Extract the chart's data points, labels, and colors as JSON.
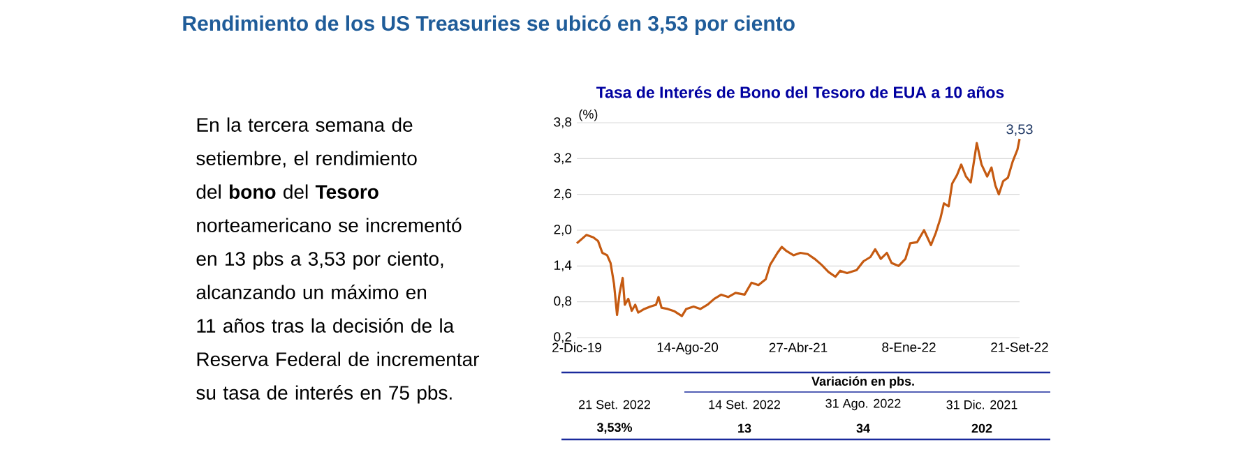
{
  "chart_data": {
    "type": "line",
    "title": "Rendimiento de los US Treasuries se ubicó en 3,53 por ciento",
    "subtitle": "Tasa de Interés de Bono del Tesoro de EUA a 10 años",
    "ylabel": "(%)",
    "annotations": [
      "En la tercera semana de setiembre, el rendimiento del **bono** del **Tesoro** norteamericano se incrementó en 13 pbs a 3,53 por ciento, alcanzando un máximo en 11 años tras la decisión de la Reserva Federal de incrementar su tasa de interés en 75 pbs.",
      "Variación en pbs.",
      "21 Set. 2022",
      "14 Set. 2022",
      "31 Ago. 2022",
      "31 Dic. 2021",
      "3,53%",
      "13",
      "34",
      "202",
      {
        "text": "3,53",
        "x": "2022-09-21",
        "y": 3.53
      }
    ],
    "x": [
      "2019-12-02",
      "2019-12-13",
      "2019-12-24",
      "2020-01-09",
      "2020-01-20",
      "2020-01-30",
      "2020-02-10",
      "2020-02-18",
      "2020-02-26",
      "2020-03-04",
      "2020-03-10",
      "2020-03-17",
      "2020-03-22",
      "2020-03-30",
      "2020-04-07",
      "2020-04-15",
      "2020-04-22",
      "2020-05-06",
      "2020-05-20",
      "2020-06-02",
      "2020-06-08",
      "2020-06-15",
      "2020-06-29",
      "2020-07-15",
      "2020-08-01",
      "2020-08-11",
      "2020-08-28",
      "2020-09-13",
      "2020-09-29",
      "2020-10-15",
      "2020-10-31",
      "2020-11-16",
      "2020-12-03",
      "2020-12-24",
      "2021-01-09",
      "2021-01-25",
      "2021-02-11",
      "2021-02-21",
      "2021-03-10",
      "2021-03-20",
      "2021-03-31",
      "2021-04-16",
      "2021-05-02",
      "2021-05-19",
      "2021-06-04",
      "2021-06-20",
      "2021-07-06",
      "2021-07-22",
      "2021-08-02",
      "2021-08-18",
      "2021-09-09",
      "2021-09-25",
      "2021-10-11",
      "2021-10-22",
      "2021-11-04",
      "2021-11-18",
      "2021-11-29",
      "2021-12-15",
      "2021-12-31",
      "2022-01-11",
      "2022-01-27",
      "2022-02-12",
      "2022-02-28",
      "2022-03-11",
      "2022-03-22",
      "2022-03-30",
      "2022-04-10",
      "2022-04-18",
      "2022-04-29",
      "2022-05-09",
      "2022-05-20",
      "2022-05-31",
      "2022-06-14",
      "2022-06-25",
      "2022-07-08",
      "2022-07-18",
      "2022-07-27",
      "2022-08-04",
      "2022-08-14",
      "2022-08-25",
      "2022-09-05",
      "2022-09-16",
      "2022-09-21"
    ],
    "series": [
      {
        "color": "#c55a11",
        "values": [
          1.78,
          1.85,
          1.92,
          1.88,
          1.82,
          1.62,
          1.58,
          1.45,
          1.1,
          0.58,
          0.95,
          1.2,
          0.75,
          0.85,
          0.65,
          0.75,
          0.62,
          0.68,
          0.72,
          0.75,
          0.88,
          0.7,
          0.68,
          0.64,
          0.56,
          0.68,
          0.72,
          0.68,
          0.75,
          0.85,
          0.92,
          0.88,
          0.95,
          0.92,
          1.12,
          1.08,
          1.18,
          1.42,
          1.62,
          1.72,
          1.65,
          1.58,
          1.62,
          1.6,
          1.52,
          1.42,
          1.3,
          1.22,
          1.32,
          1.28,
          1.33,
          1.48,
          1.55,
          1.68,
          1.52,
          1.62,
          1.45,
          1.4,
          1.52,
          1.78,
          1.8,
          2.0,
          1.75,
          1.95,
          2.2,
          2.45,
          2.4,
          2.78,
          2.92,
          3.1,
          2.9,
          2.8,
          3.46,
          3.1,
          2.9,
          3.05,
          2.75,
          2.6,
          2.82,
          2.88,
          3.15,
          3.35,
          3.53
        ]
      }
    ],
    "xlim": [
      "2019-12-02",
      "2022-09-21"
    ],
    "xticks": [
      {
        "value": "2019-12-02",
        "label": "2-Dic-19"
      },
      {
        "value": "2020-08-14",
        "label": "14-Ago-20"
      },
      {
        "value": "2021-04-27",
        "label": "27-Abr-21"
      },
      {
        "value": "2022-01-08",
        "label": "8-Ene-22"
      },
      {
        "value": "2022-09-21",
        "label": "21-Set-22"
      }
    ],
    "ylim": [
      0.2,
      3.8
    ],
    "yticks": [
      {
        "value": 0.2,
        "label": "0,2"
      },
      {
        "value": 0.8,
        "label": "0,8"
      },
      {
        "value": 1.4,
        "label": "1,4"
      },
      {
        "value": 2.0,
        "label": "2,0"
      },
      {
        "value": 2.6,
        "label": "2,6"
      },
      {
        "value": 3.2,
        "label": "3,2"
      },
      {
        "value": 3.8,
        "label": "3,8"
      }
    ],
    "grid": "y"
  }
}
